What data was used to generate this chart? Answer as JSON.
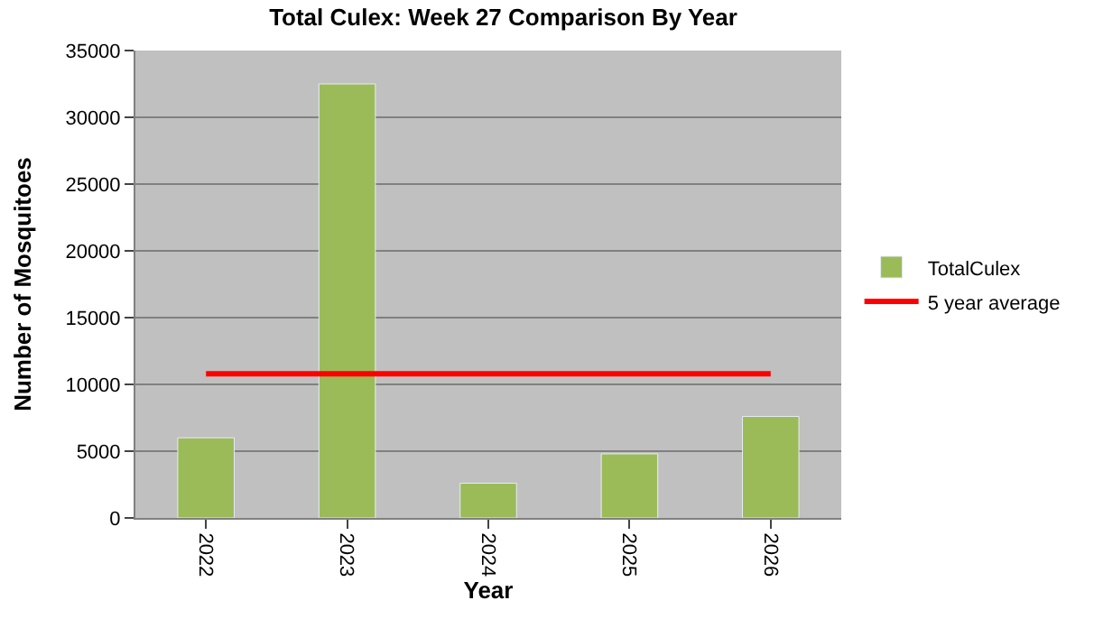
{
  "chart_data": {
    "type": "bar",
    "title": "Total Culex: Week 27 Comparison By Year",
    "xlabel": "Year",
    "ylabel": "Number of Mosquitoes",
    "categories": [
      "2022",
      "2023",
      "2024",
      "2025",
      "2026"
    ],
    "series": [
      {
        "name": "TotalCulex",
        "color": "#9bbb59",
        "values": [
          6000,
          32500,
          2600,
          4800,
          7600
        ]
      },
      {
        "name": "5 year average",
        "type": "line",
        "color": "#ff0000",
        "values": [
          10800,
          10800,
          10800,
          10800,
          10800
        ]
      }
    ],
    "ylim": [
      0,
      35000
    ],
    "yticks": [
      0,
      5000,
      10000,
      15000,
      20000,
      25000,
      30000,
      35000
    ],
    "grid": "y",
    "legend": "right",
    "marker": "none"
  }
}
